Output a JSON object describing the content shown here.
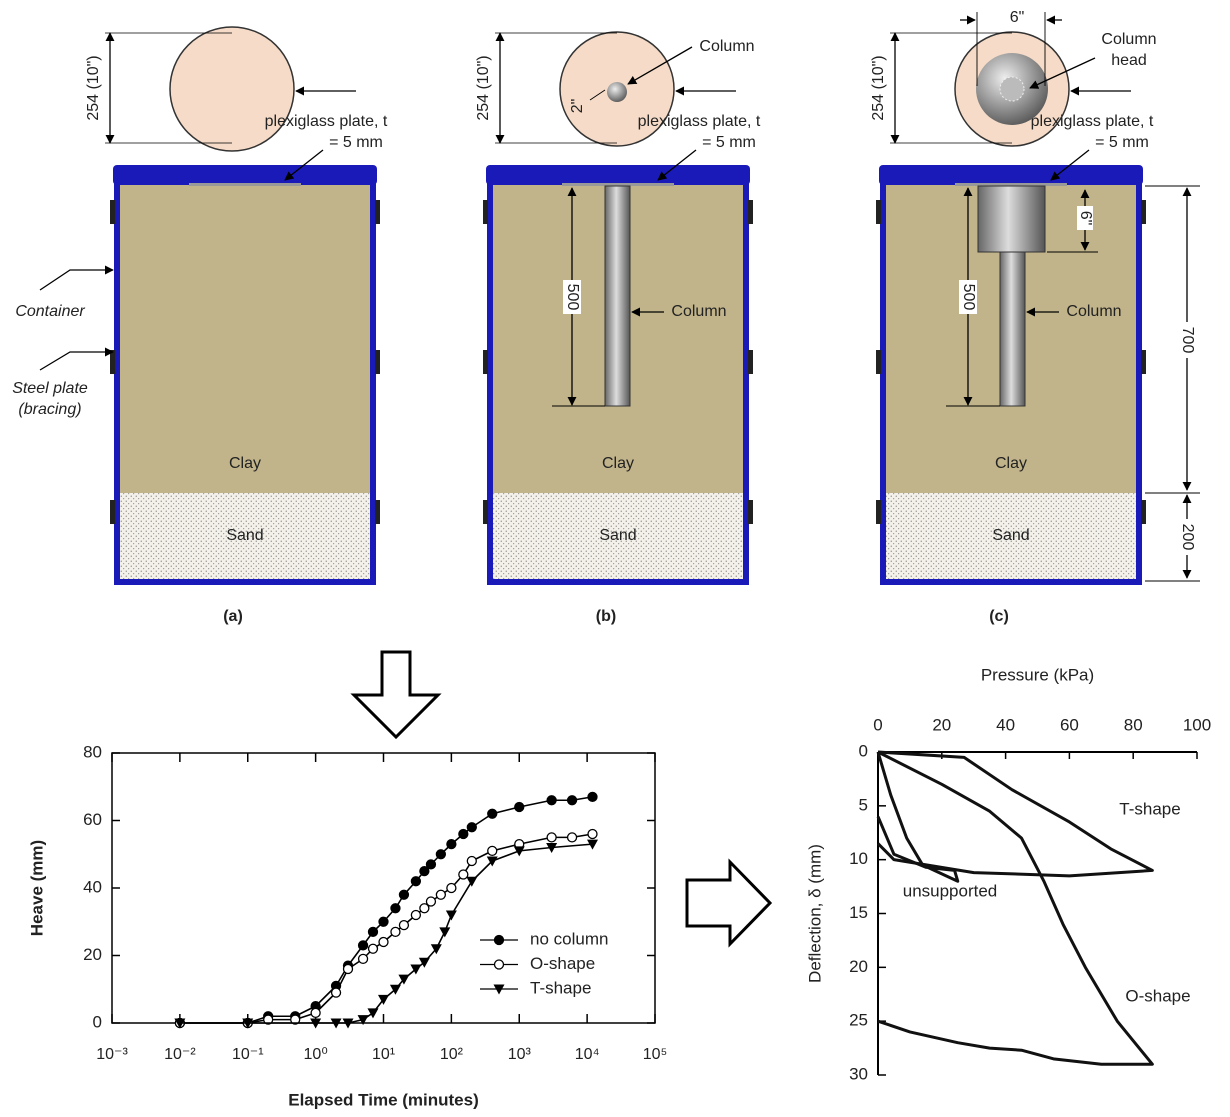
{
  "figure": {
    "panels": [
      {
        "label": "(a)",
        "plate_dimension": "254 (10\")",
        "plate_note": [
          "plexiglass plate, t",
          "= 5 mm"
        ],
        "clay": "Clay",
        "sand": "Sand",
        "container": "Container",
        "steel_plate": [
          "Steel plate",
          "(bracing)"
        ]
      },
      {
        "label": "(b)",
        "plate_dimension": "254 (10\")",
        "plate_note": [
          "plexiglass plate, t",
          "= 5 mm"
        ],
        "clay": "Clay",
        "sand": "Sand",
        "column_top": "Column",
        "column_diameter": "2\"",
        "column_depth": "500",
        "column_side": "Column"
      },
      {
        "label": "(c)",
        "plate_dimension": "254 (10\")",
        "plate_note": [
          "plexiglass plate, t",
          "= 5 mm"
        ],
        "clay": "Clay",
        "sand": "Sand",
        "head_width": "6\"",
        "column_head": [
          "Column",
          "head"
        ],
        "head_depth": "6\"",
        "column_depth": "500",
        "column_side": "Column",
        "clay_depth": "700",
        "sand_depth": "200"
      }
    ]
  },
  "chart_data": [
    {
      "type": "line",
      "xscale": "log",
      "xlabel": "Elapsed Time (minutes)",
      "ylabel": "Heave (mm)",
      "xlim": [
        0.001,
        100000
      ],
      "xticks": [
        {
          "value": 0.001,
          "label": "10⁻³"
        },
        {
          "value": 0.01,
          "label": "10⁻²"
        },
        {
          "value": 0.1,
          "label": "10⁻¹"
        },
        {
          "value": 1,
          "label": "10⁰"
        },
        {
          "value": 10,
          "label": "10¹"
        },
        {
          "value": 100,
          "label": "10²"
        },
        {
          "value": 1000,
          "label": "10³"
        },
        {
          "value": 10000,
          "label": "10⁴"
        },
        {
          "value": 100000,
          "label": "10⁵"
        }
      ],
      "ylim": [
        0,
        80
      ],
      "yticks": [
        0,
        20,
        40,
        60,
        80
      ],
      "legend": "lower right",
      "series": [
        {
          "name": "no column",
          "color": "#000000",
          "marker": "filled circle",
          "x": [
            0.01,
            0.1,
            0.2,
            0.5,
            1,
            2,
            3,
            5,
            7,
            10,
            15,
            20,
            30,
            40,
            50,
            70,
            100,
            150,
            200,
            400,
            1000,
            3000,
            6000,
            12000
          ],
          "values": [
            0,
            0,
            2,
            2,
            5,
            11,
            17,
            23,
            27,
            30,
            34,
            38,
            42,
            45,
            47,
            50,
            53,
            56,
            58,
            62,
            64,
            66,
            66,
            67
          ]
        },
        {
          "name": "O-shape",
          "color": "#000000",
          "marker": "open circle",
          "x": [
            0.01,
            0.1,
            0.2,
            0.5,
            1,
            2,
            3,
            5,
            7,
            10,
            15,
            20,
            30,
            40,
            50,
            70,
            100,
            150,
            200,
            400,
            1000,
            3000,
            6000,
            12000
          ],
          "values": [
            0,
            0,
            1,
            1,
            3,
            9,
            16,
            19,
            22,
            24,
            27,
            29,
            32,
            34,
            36,
            38,
            40,
            44,
            48,
            51,
            53,
            55,
            55,
            56
          ]
        },
        {
          "name": "T-shape",
          "color": "#000000",
          "marker": "filled triangle down",
          "x": [
            0.01,
            0.1,
            1,
            2,
            3,
            5,
            7,
            10,
            15,
            20,
            30,
            40,
            60,
            80,
            100,
            200,
            400,
            1000,
            3000,
            12000
          ],
          "values": [
            0,
            0,
            0,
            0,
            0,
            1,
            3,
            7,
            10,
            13,
            16,
            18,
            22,
            27,
            32,
            42,
            48,
            51,
            52,
            53
          ]
        }
      ]
    },
    {
      "type": "line",
      "xscale": "linear",
      "x_axis": "top",
      "y_inverted": true,
      "xlabel": "Pressure (kPa)",
      "ylabel": "Deflection, δ (mm)",
      "xlim": [
        0,
        100
      ],
      "xticks": [
        0,
        20,
        40,
        60,
        80,
        100
      ],
      "ylim": [
        0,
        30
      ],
      "yticks": [
        0,
        5,
        10,
        15,
        20,
        25,
        30
      ],
      "series": [
        {
          "name": "T-shape",
          "color": "#111111",
          "x": [
            0,
            27,
            42,
            60,
            73,
            86,
            60,
            30,
            5,
            0
          ],
          "values": [
            0,
            0.5,
            3.5,
            6.5,
            9,
            11,
            11.5,
            11.2,
            10,
            8.5
          ]
        },
        {
          "name": "unsupported",
          "color": "#111111",
          "x": [
            0,
            4,
            9,
            14,
            25,
            24,
            15,
            5,
            0
          ],
          "values": [
            0,
            4,
            8,
            10.5,
            12,
            11,
            10.7,
            9.5,
            6
          ]
        },
        {
          "name": "O-shape",
          "color": "#111111",
          "x": [
            0,
            20,
            35,
            45,
            52,
            58,
            65,
            75,
            86,
            70,
            55,
            45,
            35,
            25,
            10,
            0
          ],
          "values": [
            0,
            3,
            5.5,
            8,
            12,
            16,
            20,
            25,
            29,
            29,
            28.5,
            27.7,
            27.5,
            27,
            26,
            25
          ]
        }
      ]
    }
  ]
}
